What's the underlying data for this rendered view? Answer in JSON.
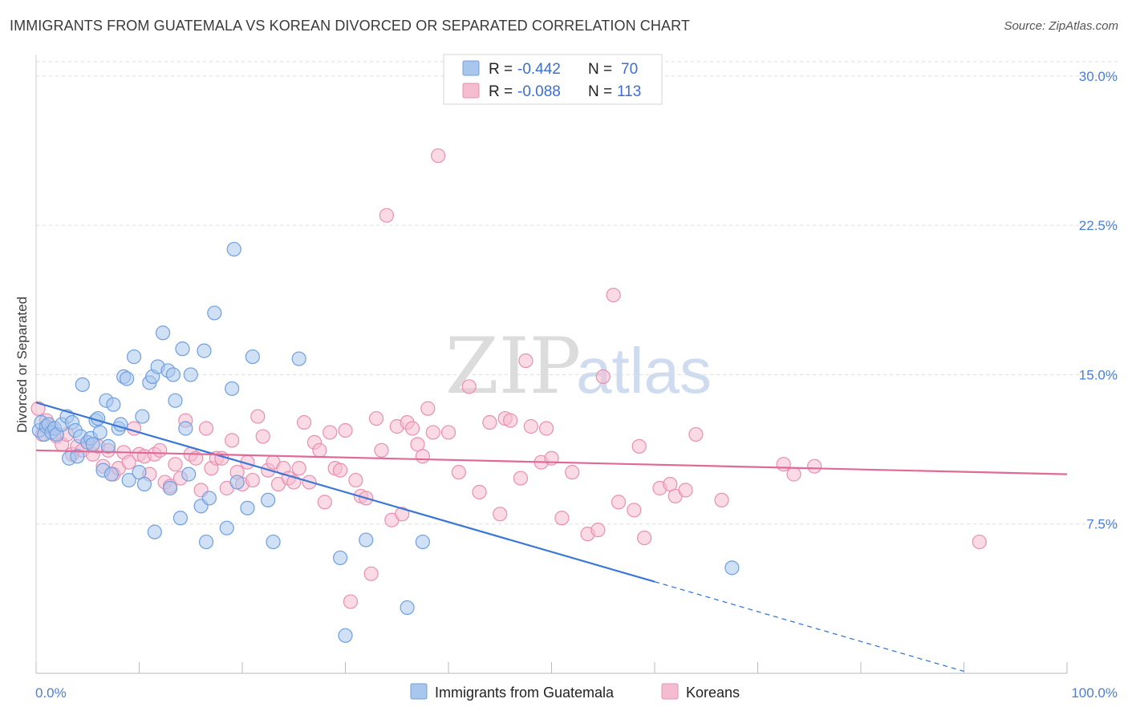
{
  "title": "IMMIGRANTS FROM GUATEMALA VS KOREAN DIVORCED OR SEPARATED CORRELATION CHART",
  "source": "Source: ZipAtlas.com",
  "watermark": {
    "zip": "ZIP",
    "atlas": "atlas"
  },
  "colors": {
    "blue_fill": "#a9c6ec",
    "blue_stroke": "#6f9fe0",
    "blue_line": "#3a78d4",
    "pink_fill": "#f5bcd0",
    "pink_stroke": "#e98fb0",
    "pink_line": "#e06a97",
    "grid": "#dddddd",
    "tick_text": "#4a7fd4"
  },
  "legend": {
    "rows": [
      {
        "r_label": "R =",
        "r_value": "-0.442",
        "n_label": "N =",
        "n_value": "70"
      },
      {
        "r_label": "R =",
        "r_value": "-0.088",
        "n_label": "N =",
        "n_value": "113"
      }
    ]
  },
  "chart_data": {
    "type": "scatter",
    "ylabel": "Divorced or Separated",
    "xlim": [
      0,
      100
    ],
    "ylim": [
      0,
      31
    ],
    "y_ticks": [
      {
        "value": 7.5,
        "label": "7.5%"
      },
      {
        "value": 15,
        "label": "15.0%"
      },
      {
        "value": 22.5,
        "label": "22.5%"
      },
      {
        "value": 30,
        "label": "30.0%"
      }
    ],
    "x_tick_labels": {
      "min": "0.0%",
      "max": "100.0%"
    },
    "grid": "horizontal dashed",
    "legend_position": "top-center",
    "series": [
      {
        "name": "Immigrants from Guatemala",
        "color": "blue",
        "trend": {
          "x0": 0,
          "y0": 13.6,
          "x1": 60,
          "y1": 4.6,
          "dash_to_x": 90
        },
        "points": [
          [
            0.3,
            12.2
          ],
          [
            0.5,
            12.6
          ],
          [
            0.8,
            12.0
          ],
          [
            1.0,
            12.4
          ],
          [
            1.2,
            12.5
          ],
          [
            1.5,
            12.1
          ],
          [
            1.8,
            12.3
          ],
          [
            2.0,
            12.0
          ],
          [
            2.5,
            12.5
          ],
          [
            3.0,
            12.9
          ],
          [
            3.2,
            10.8
          ],
          [
            3.5,
            12.6
          ],
          [
            3.8,
            12.2
          ],
          [
            4.0,
            10.9
          ],
          [
            4.3,
            11.9
          ],
          [
            4.5,
            14.5
          ],
          [
            5.0,
            11.6
          ],
          [
            5.3,
            11.8
          ],
          [
            5.5,
            11.5
          ],
          [
            5.8,
            12.7
          ],
          [
            6.0,
            12.8
          ],
          [
            6.2,
            12.1
          ],
          [
            6.5,
            10.2
          ],
          [
            6.8,
            13.7
          ],
          [
            7.0,
            11.4
          ],
          [
            7.3,
            10.0
          ],
          [
            7.5,
            13.5
          ],
          [
            8.0,
            12.3
          ],
          [
            8.2,
            12.5
          ],
          [
            8.5,
            14.9
          ],
          [
            8.8,
            14.8
          ],
          [
            9.0,
            9.7
          ],
          [
            9.5,
            15.9
          ],
          [
            10.0,
            10.1
          ],
          [
            10.3,
            12.9
          ],
          [
            10.5,
            9.5
          ],
          [
            11.0,
            14.6
          ],
          [
            11.3,
            14.9
          ],
          [
            11.5,
            7.1
          ],
          [
            11.8,
            15.4
          ],
          [
            12.3,
            17.1
          ],
          [
            12.8,
            15.2
          ],
          [
            13.0,
            9.3
          ],
          [
            13.3,
            15.0
          ],
          [
            13.5,
            13.7
          ],
          [
            14.0,
            7.8
          ],
          [
            14.2,
            16.3
          ],
          [
            14.5,
            12.3
          ],
          [
            14.8,
            10.0
          ],
          [
            15.0,
            15.0
          ],
          [
            16.0,
            8.4
          ],
          [
            16.3,
            16.2
          ],
          [
            16.5,
            6.6
          ],
          [
            16.8,
            8.8
          ],
          [
            17.3,
            18.1
          ],
          [
            18.5,
            7.3
          ],
          [
            19.0,
            14.3
          ],
          [
            19.2,
            21.3
          ],
          [
            19.5,
            9.6
          ],
          [
            20.5,
            8.3
          ],
          [
            21.0,
            15.9
          ],
          [
            22.5,
            8.7
          ],
          [
            23.0,
            6.6
          ],
          [
            25.5,
            15.8
          ],
          [
            29.5,
            5.8
          ],
          [
            30.0,
            1.9
          ],
          [
            32.0,
            6.7
          ],
          [
            36.0,
            3.3
          ],
          [
            37.5,
            6.6
          ],
          [
            67.5,
            5.3
          ]
        ]
      },
      {
        "name": "Koreans",
        "color": "pink",
        "trend": {
          "x0": 0,
          "y0": 11.2,
          "x1": 100,
          "y1": 10.0
        },
        "points": [
          [
            0.2,
            13.3
          ],
          [
            0.6,
            12.0
          ],
          [
            1.0,
            12.7
          ],
          [
            1.5,
            12.3
          ],
          [
            2.0,
            11.9
          ],
          [
            2.5,
            11.5
          ],
          [
            3.0,
            12.0
          ],
          [
            3.5,
            11.0
          ],
          [
            4.0,
            11.4
          ],
          [
            4.5,
            11.2
          ],
          [
            5.0,
            11.6
          ],
          [
            5.5,
            11.0
          ],
          [
            6.0,
            11.4
          ],
          [
            6.5,
            10.4
          ],
          [
            7.0,
            11.2
          ],
          [
            7.5,
            10.0
          ],
          [
            8.0,
            10.3
          ],
          [
            8.5,
            11.1
          ],
          [
            9.0,
            10.6
          ],
          [
            9.5,
            12.3
          ],
          [
            10.0,
            11.0
          ],
          [
            10.5,
            10.9
          ],
          [
            11.0,
            10.0
          ],
          [
            11.5,
            11.0
          ],
          [
            12.0,
            11.2
          ],
          [
            12.5,
            9.6
          ],
          [
            13.0,
            9.4
          ],
          [
            13.5,
            10.5
          ],
          [
            14.0,
            9.8
          ],
          [
            14.5,
            12.7
          ],
          [
            15.0,
            11.0
          ],
          [
            15.5,
            10.8
          ],
          [
            16.0,
            9.2
          ],
          [
            16.5,
            12.3
          ],
          [
            17.0,
            10.3
          ],
          [
            17.5,
            10.8
          ],
          [
            18.0,
            10.8
          ],
          [
            18.5,
            9.3
          ],
          [
            19.0,
            11.7
          ],
          [
            19.5,
            10.1
          ],
          [
            20.0,
            9.5
          ],
          [
            20.5,
            10.6
          ],
          [
            21.0,
            9.7
          ],
          [
            21.5,
            12.9
          ],
          [
            22.0,
            11.9
          ],
          [
            22.5,
            10.2
          ],
          [
            23.0,
            10.6
          ],
          [
            23.5,
            9.5
          ],
          [
            24.0,
            10.3
          ],
          [
            24.5,
            9.8
          ],
          [
            25.0,
            9.6
          ],
          [
            25.5,
            10.3
          ],
          [
            26.0,
            12.6
          ],
          [
            26.5,
            9.6
          ],
          [
            27.0,
            11.6
          ],
          [
            27.5,
            11.2
          ],
          [
            28.0,
            8.6
          ],
          [
            28.5,
            12.1
          ],
          [
            29.0,
            10.3
          ],
          [
            29.5,
            10.2
          ],
          [
            30.0,
            12.2
          ],
          [
            30.5,
            3.6
          ],
          [
            31.0,
            9.7
          ],
          [
            31.5,
            8.9
          ],
          [
            32.0,
            8.8
          ],
          [
            32.5,
            5.0
          ],
          [
            33.0,
            12.8
          ],
          [
            33.5,
            11.2
          ],
          [
            34.0,
            23.0
          ],
          [
            34.5,
            7.7
          ],
          [
            35.0,
            12.4
          ],
          [
            35.5,
            8.0
          ],
          [
            36.0,
            12.6
          ],
          [
            36.5,
            12.3
          ],
          [
            37.0,
            11.5
          ],
          [
            37.5,
            10.9
          ],
          [
            38.0,
            13.3
          ],
          [
            38.5,
            12.1
          ],
          [
            39.0,
            26.0
          ],
          [
            40.0,
            12.1
          ],
          [
            41.0,
            10.1
          ],
          [
            42.0,
            14.4
          ],
          [
            43.0,
            9.1
          ],
          [
            44.0,
            12.6
          ],
          [
            45.0,
            8.0
          ],
          [
            45.5,
            12.8
          ],
          [
            46.0,
            12.7
          ],
          [
            47.0,
            9.8
          ],
          [
            47.5,
            15.7
          ],
          [
            48.0,
            12.4
          ],
          [
            49.0,
            10.6
          ],
          [
            49.5,
            12.3
          ],
          [
            50.0,
            10.8
          ],
          [
            51.0,
            7.8
          ],
          [
            52.0,
            10.1
          ],
          [
            53.5,
            7.0
          ],
          [
            54.5,
            7.2
          ],
          [
            55.0,
            14.9
          ],
          [
            56.0,
            19.0
          ],
          [
            56.5,
            8.6
          ],
          [
            58.0,
            8.2
          ],
          [
            58.5,
            11.4
          ],
          [
            59.0,
            6.8
          ],
          [
            60.5,
            9.3
          ],
          [
            61.5,
            9.5
          ],
          [
            62.0,
            8.9
          ],
          [
            63.0,
            9.2
          ],
          [
            64.0,
            12.0
          ],
          [
            66.5,
            8.7
          ],
          [
            72.5,
            10.5
          ],
          [
            73.5,
            10.0
          ],
          [
            75.5,
            10.4
          ],
          [
            91.5,
            6.6
          ]
        ]
      }
    ]
  }
}
